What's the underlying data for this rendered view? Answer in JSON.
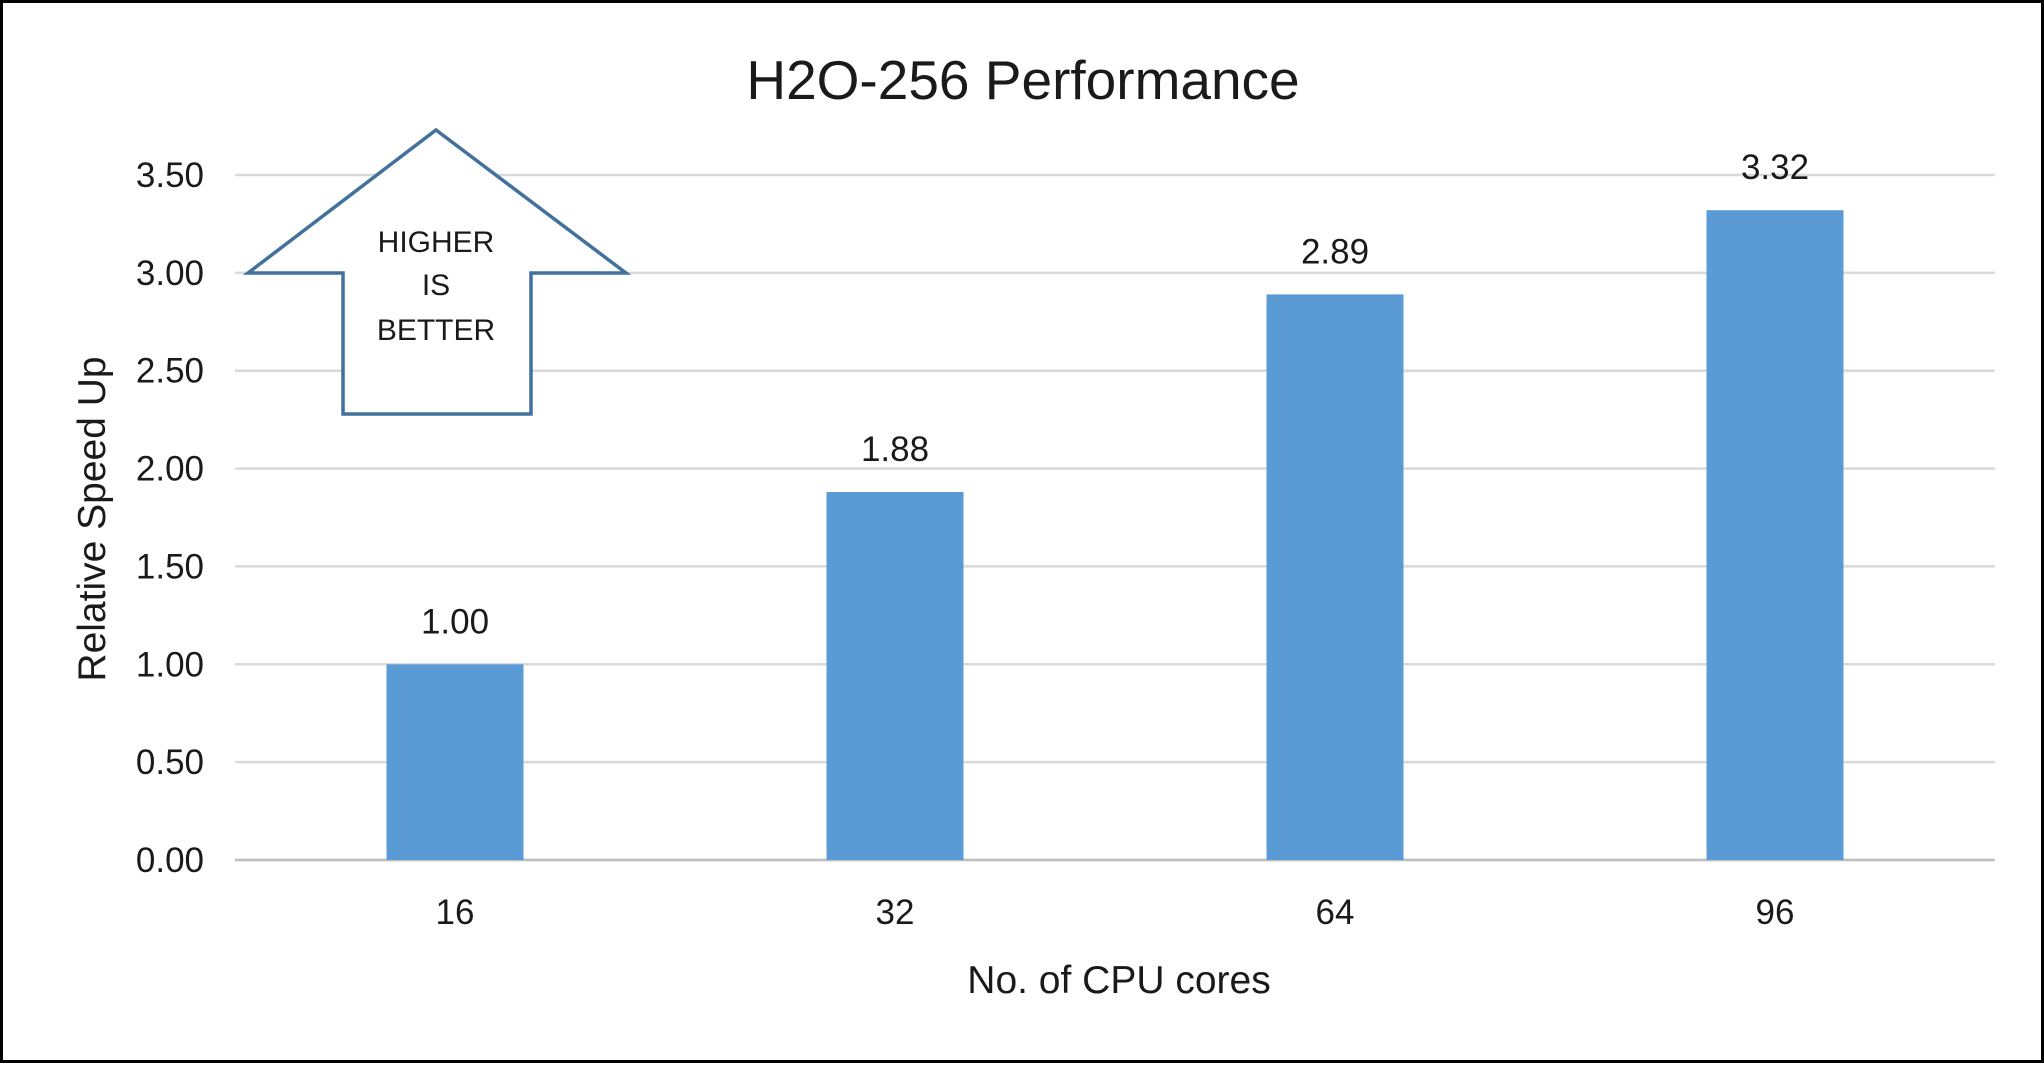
{
  "chart_data": {
    "type": "bar",
    "title": "H2O-256 Performance",
    "xlabel": "No. of CPU cores",
    "ylabel": "Relative Speed Up",
    "categories": [
      "16",
      "32",
      "64",
      "96"
    ],
    "values": [
      1.0,
      1.88,
      2.89,
      3.32
    ],
    "data_labels": [
      "1.00",
      "1.88",
      "2.89",
      "3.32"
    ],
    "ylim": [
      0,
      3.5
    ],
    "yticks": [
      0,
      0.5,
      1.0,
      1.5,
      2.0,
      2.5,
      3.0,
      3.5
    ],
    "ytick_labels": [
      "0.00",
      "0.50",
      "1.00",
      "1.50",
      "2.00",
      "2.50",
      "3.00",
      "3.50"
    ],
    "grid": true,
    "legend": "none",
    "bar_color": "#5B9BD5",
    "gridline_color": "#D9D9D9"
  },
  "callout": {
    "lines": [
      "HIGHER",
      "IS",
      "BETTER"
    ],
    "stroke_color": "#41719C",
    "icon": "up-arrow-icon"
  }
}
